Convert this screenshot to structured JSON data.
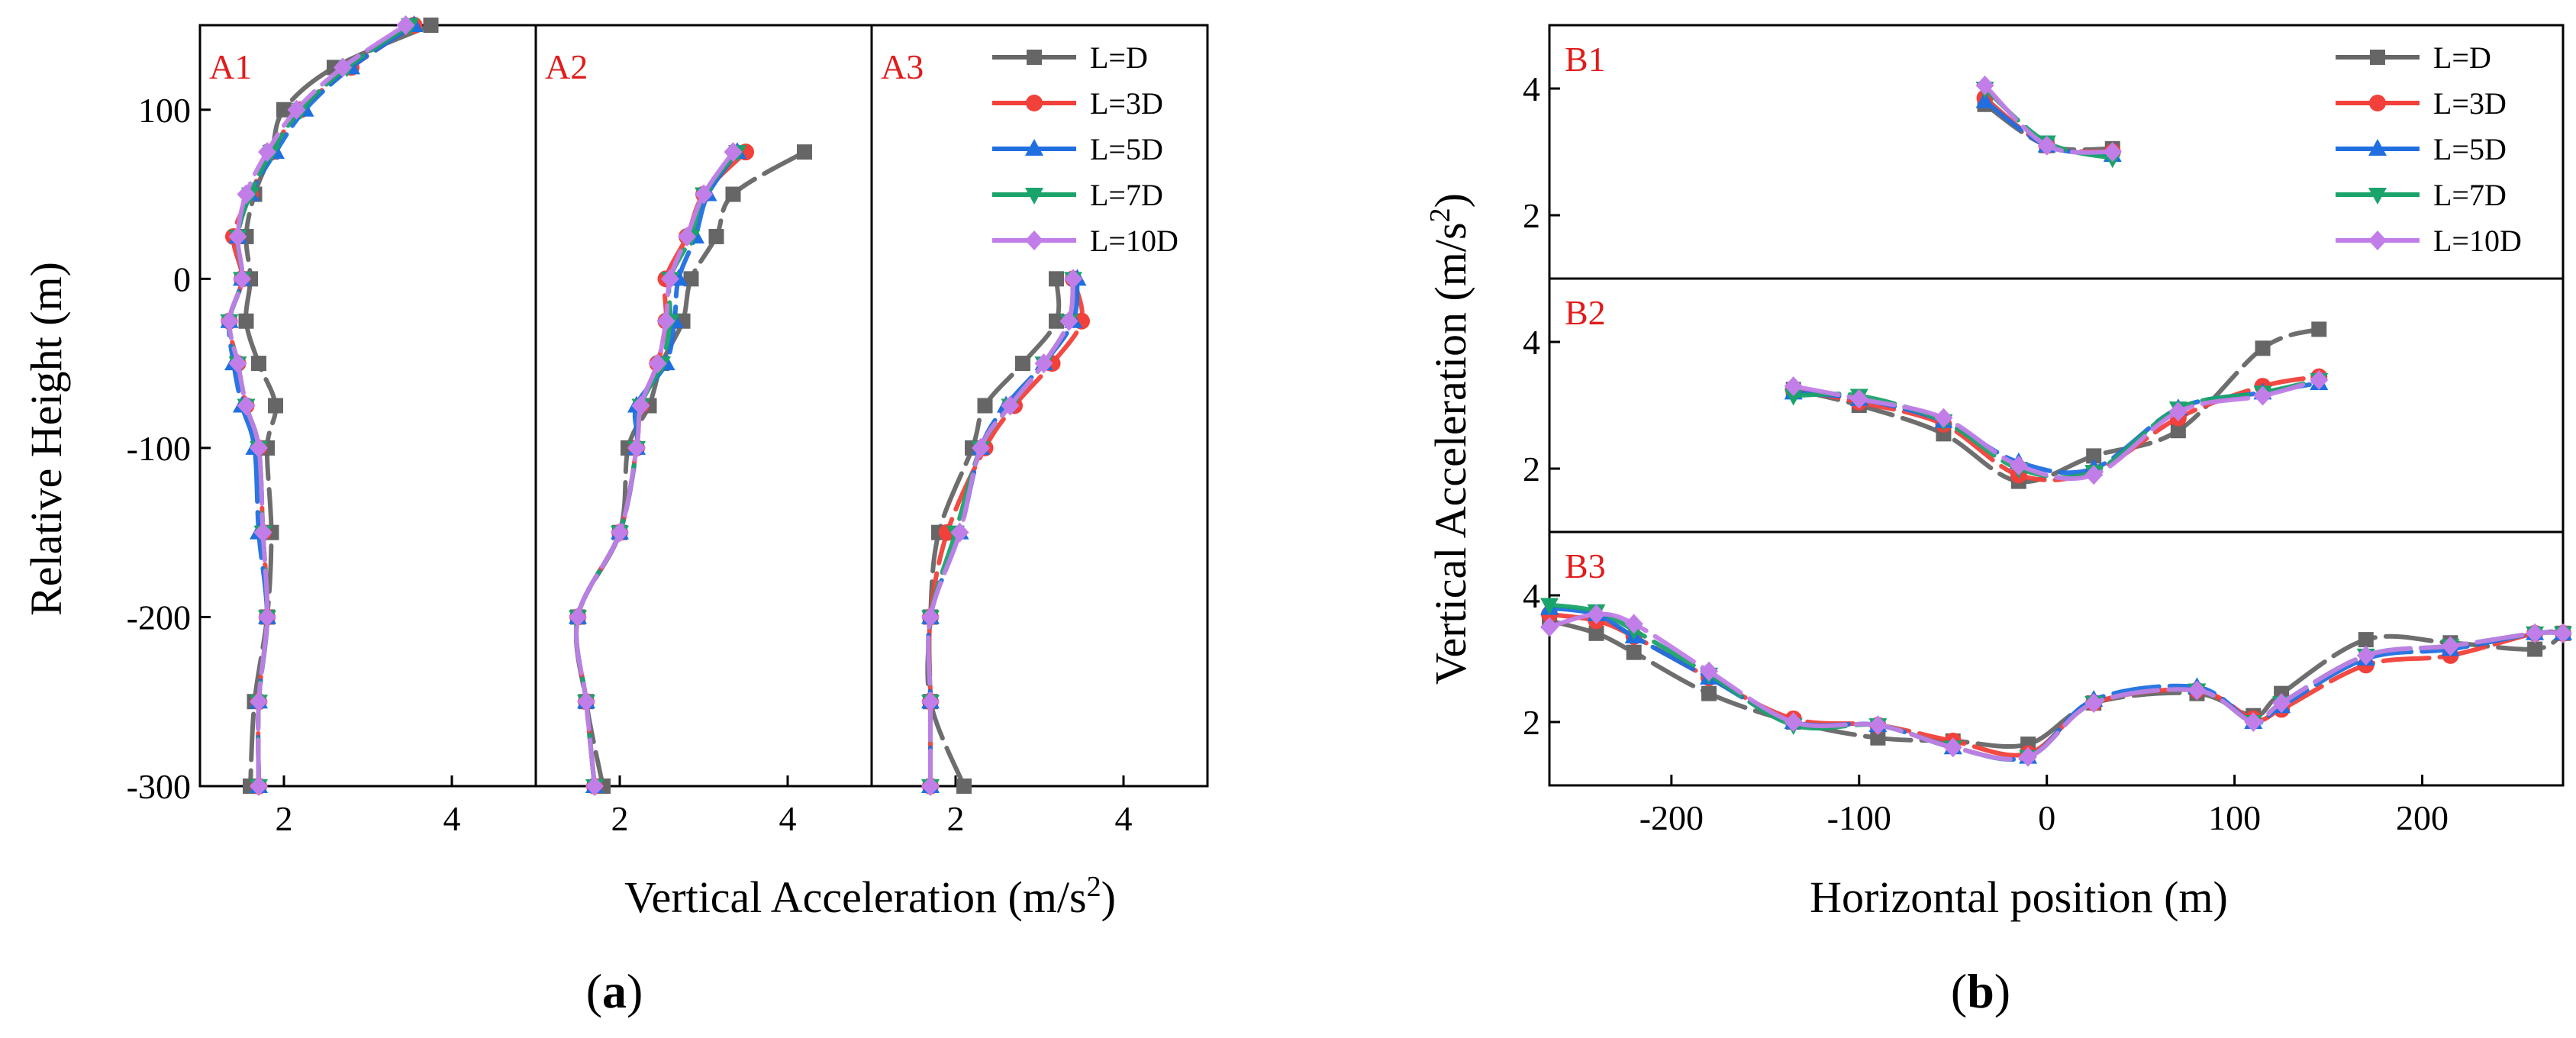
{
  "figure": {
    "caption_a": "a",
    "caption_b": "b"
  },
  "series_meta": [
    {
      "name": "L=D",
      "color": "#666666",
      "marker": "square"
    },
    {
      "name": "L=3D",
      "color": "#f2403a",
      "marker": "circle"
    },
    {
      "name": "L=5D",
      "color": "#1f6fe0",
      "marker": "triangle-up"
    },
    {
      "name": "L=7D",
      "color": "#1aa36b",
      "marker": "triangle-down"
    },
    {
      "name": "L=10D",
      "color": "#c27ee8",
      "marker": "diamond"
    }
  ],
  "chart_data": [
    {
      "id": "a",
      "type": "line",
      "xlabel": "Vertical Acceleration (m/s",
      "xlabel_sup": "2",
      "xlabel_close": ")",
      "ylabel": "Relative Height (m)",
      "ylim": [
        -300,
        150
      ],
      "yticks": [
        "-300",
        "-200",
        "-100",
        "0",
        "100"
      ],
      "legend": "top-right",
      "panels": [
        {
          "label": "A1",
          "xlim": [
            1,
            5
          ],
          "xticks": [
            "2",
            "4"
          ],
          "y": [
            150,
            125,
            100,
            75,
            50,
            25,
            0,
            -25,
            -50,
            -75,
            -100,
            -150,
            -200,
            -250,
            -300
          ],
          "series": [
            {
              "name": "L=D",
              "values": [
                3.75,
                2.6,
                2.0,
                1.85,
                1.65,
                1.55,
                1.6,
                1.55,
                1.7,
                1.9,
                1.8,
                1.85,
                1.8,
                1.65,
                1.6
              ]
            },
            {
              "name": "L=3D",
              "values": [
                3.55,
                2.8,
                2.2,
                1.85,
                1.6,
                1.4,
                1.5,
                1.35,
                1.45,
                1.55,
                1.7,
                1.75,
                1.8,
                1.7,
                1.7
              ]
            },
            {
              "name": "L=5D",
              "values": [
                3.55,
                2.8,
                2.25,
                1.9,
                1.6,
                1.45,
                1.5,
                1.35,
                1.4,
                1.5,
                1.65,
                1.7,
                1.8,
                1.7,
                1.7
              ]
            },
            {
              "name": "L=7D",
              "values": [
                3.5,
                2.75,
                2.2,
                1.85,
                1.6,
                1.45,
                1.5,
                1.35,
                1.45,
                1.55,
                1.7,
                1.75,
                1.8,
                1.7,
                1.7
              ]
            },
            {
              "name": "L=10D",
              "values": [
                3.45,
                2.7,
                2.15,
                1.8,
                1.55,
                1.45,
                1.5,
                1.35,
                1.45,
                1.55,
                1.7,
                1.75,
                1.8,
                1.7,
                1.7
              ]
            }
          ]
        },
        {
          "label": "A2",
          "xlim": [
            1,
            5
          ],
          "xticks": [
            "2",
            "4"
          ],
          "y": [
            75,
            50,
            25,
            0,
            -25,
            -50,
            -75,
            -100,
            -150,
            -200,
            -250,
            -300
          ],
          "series": [
            {
              "name": "L=D",
              "values": [
                4.2,
                3.35,
                3.15,
                2.85,
                2.75,
                2.5,
                2.35,
                2.1,
                2.0,
                1.5,
                1.6,
                1.8
              ]
            },
            {
              "name": "L=3D",
              "values": [
                3.5,
                3.0,
                2.8,
                2.55,
                2.55,
                2.45,
                2.25,
                2.2,
                2.0,
                1.5,
                1.6,
                1.7
              ]
            },
            {
              "name": "L=5D",
              "values": [
                3.4,
                3.05,
                2.9,
                2.7,
                2.65,
                2.55,
                2.2,
                2.2,
                2.0,
                1.5,
                1.6,
                1.7
              ]
            },
            {
              "name": "L=7D",
              "values": [
                3.4,
                3.0,
                2.85,
                2.6,
                2.6,
                2.5,
                2.25,
                2.2,
                2.0,
                1.5,
                1.6,
                1.7
              ]
            },
            {
              "name": "L=10D",
              "values": [
                3.35,
                3.0,
                2.8,
                2.6,
                2.55,
                2.45,
                2.25,
                2.2,
                2.0,
                1.5,
                1.6,
                1.7
              ]
            }
          ]
        },
        {
          "label": "A3",
          "xlim": [
            1,
            5
          ],
          "xticks": [
            "2",
            "4"
          ],
          "y": [
            0,
            -25,
            -50,
            -75,
            -100,
            -150,
            -200,
            -250,
            -300
          ],
          "series": [
            {
              "name": "L=D",
              "values": [
                3.2,
                3.2,
                2.8,
                2.35,
                2.2,
                1.8,
                1.7,
                1.7,
                2.1
              ]
            },
            {
              "name": "L=3D",
              "values": [
                3.4,
                3.5,
                3.15,
                2.7,
                2.35,
                1.9,
                1.7,
                1.7,
                1.7
              ]
            },
            {
              "name": "L=5D",
              "values": [
                3.45,
                3.4,
                3.05,
                2.6,
                2.3,
                2.05,
                1.7,
                1.7,
                1.7
              ]
            },
            {
              "name": "L=7D",
              "values": [
                3.4,
                3.35,
                3.05,
                2.65,
                2.3,
                2.0,
                1.7,
                1.7,
                1.7
              ]
            },
            {
              "name": "L=10D",
              "values": [
                3.4,
                3.35,
                3.05,
                2.65,
                2.3,
                2.05,
                1.7,
                1.7,
                1.7
              ]
            }
          ]
        }
      ]
    },
    {
      "id": "b",
      "type": "line",
      "xlabel": "Horizontal position (m)",
      "ylabel": "Vertical Acceleration (m/s",
      "ylabel_sup": "2",
      "ylabel_close": ")",
      "xlim": [
        -265,
        275
      ],
      "xticks": [
        "-200",
        "-100",
        "0",
        "100",
        "200"
      ],
      "legend": "top-right",
      "panels": [
        {
          "label": "B1",
          "ylim": [
            1,
            5
          ],
          "yticks": [
            "2",
            "4"
          ],
          "x": [
            -33,
            0,
            35
          ],
          "series": [
            {
              "name": "L=D",
              "values": [
                3.75,
                3.1,
                3.05
              ]
            },
            {
              "name": "L=3D",
              "values": [
                3.85,
                3.1,
                3.0
              ]
            },
            {
              "name": "L=5D",
              "values": [
                3.8,
                3.1,
                2.95
              ]
            },
            {
              "name": "L=7D",
              "values": [
                4.0,
                3.15,
                2.9
              ]
            },
            {
              "name": "L=10D",
              "values": [
                4.05,
                3.1,
                3.0
              ]
            }
          ]
        },
        {
          "label": "B2",
          "ylim": [
            1,
            5
          ],
          "yticks": [
            "2",
            "4"
          ],
          "x": [
            -135,
            -100,
            -55,
            -15,
            25,
            70,
            115,
            145
          ],
          "series": [
            {
              "name": "L=D",
              "values": [
                3.25,
                3.0,
                2.55,
                1.8,
                2.2,
                2.6,
                3.9,
                4.2
              ]
            },
            {
              "name": "L=3D",
              "values": [
                3.25,
                3.05,
                2.7,
                1.9,
                1.95,
                2.8,
                3.3,
                3.45
              ]
            },
            {
              "name": "L=5D",
              "values": [
                3.2,
                3.1,
                2.75,
                2.1,
                2.0,
                2.95,
                3.2,
                3.35
              ]
            },
            {
              "name": "L=7D",
              "values": [
                3.15,
                3.15,
                2.75,
                2.0,
                1.95,
                2.95,
                3.2,
                3.4
              ]
            },
            {
              "name": "L=10D",
              "values": [
                3.3,
                3.1,
                2.8,
                2.05,
                1.9,
                2.9,
                3.15,
                3.4
              ]
            }
          ]
        },
        {
          "label": "B3",
          "ylim": [
            1,
            5
          ],
          "yticks": [
            "2",
            "4"
          ],
          "x": [
            -265,
            -240,
            -220,
            -180,
            -135,
            -90,
            -50,
            -10,
            25,
            80,
            110,
            125,
            170,
            215,
            260,
            275
          ],
          "series": [
            {
              "name": "L=D",
              "values": [
                3.6,
                3.4,
                3.1,
                2.45,
                2.0,
                1.75,
                1.7,
                1.65,
                2.3,
                2.45,
                2.1,
                2.45,
                3.3,
                3.25,
                3.15,
                3.4
              ]
            },
            {
              "name": "L=3D",
              "values": [
                3.7,
                3.6,
                3.35,
                2.7,
                2.05,
                1.95,
                1.7,
                1.5,
                2.3,
                2.5,
                2.05,
                2.2,
                2.9,
                3.05,
                3.4,
                3.4
              ]
            },
            {
              "name": "L=5D",
              "values": [
                3.8,
                3.7,
                3.35,
                2.7,
                2.0,
                1.95,
                1.6,
                1.45,
                2.35,
                2.55,
                2.0,
                2.25,
                3.0,
                3.15,
                3.4,
                3.4
              ]
            },
            {
              "name": "L=7D",
              "values": [
                3.85,
                3.75,
                3.45,
                2.75,
                1.95,
                1.95,
                1.6,
                1.45,
                2.3,
                2.5,
                2.0,
                2.3,
                3.05,
                3.2,
                3.4,
                3.4
              ]
            },
            {
              "name": "L=10D",
              "values": [
                3.5,
                3.7,
                3.55,
                2.8,
                2.0,
                1.95,
                1.6,
                1.45,
                2.3,
                2.5,
                2.0,
                2.3,
                3.05,
                3.2,
                3.4,
                3.4
              ]
            }
          ]
        }
      ]
    }
  ]
}
